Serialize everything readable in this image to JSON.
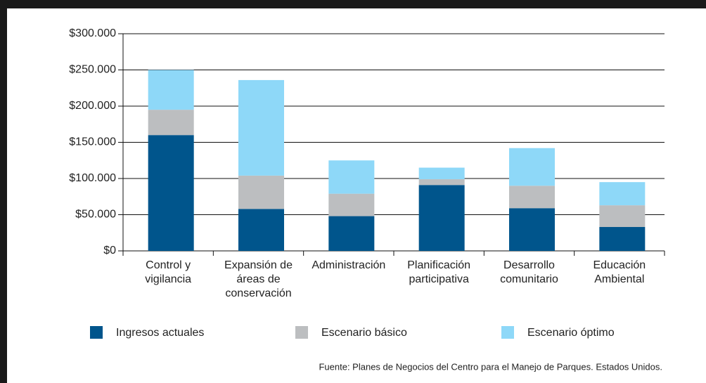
{
  "chart_data": {
    "type": "stacked_bar",
    "categories": [
      "Control y vigilancia",
      "Expansión de áreas de conservación",
      "Administración",
      "Planificación participativa",
      "Desarrollo comunitario",
      "Educación Ambiental"
    ],
    "series": [
      {
        "name": "Ingresos actuales",
        "color": "#00558c",
        "values": [
          160000,
          58000,
          48000,
          91000,
          59000,
          33000
        ]
      },
      {
        "name": "Escenario básico",
        "color": "#bcbec0",
        "values": [
          35000,
          46000,
          31000,
          8000,
          31000,
          30000
        ]
      },
      {
        "name": "Escenario óptimo",
        "color": "#8ed8f8",
        "values": [
          55000,
          132000,
          46000,
          16000,
          52000,
          32000
        ]
      }
    ],
    "ylim": [
      0,
      300000
    ],
    "yticks": [
      {
        "value": 0,
        "label": "$0"
      },
      {
        "value": 50000,
        "label": "$50.000"
      },
      {
        "value": 100000,
        "label": "$100.000"
      },
      {
        "value": 150000,
        "label": "$150.000"
      },
      {
        "value": 200000,
        "label": "$200.000"
      },
      {
        "value": 250000,
        "label": "$250.000"
      },
      {
        "value": 300000,
        "label": "$300.000"
      }
    ],
    "grid": true,
    "source": "Fuente: Planes de Negocios del Centro para el Manejo de Parques. Estados Unidos."
  }
}
